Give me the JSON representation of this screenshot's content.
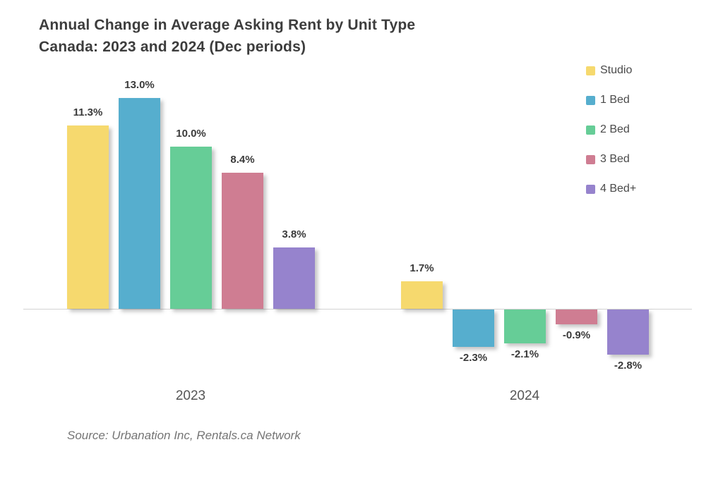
{
  "title": {
    "line1": "Annual Change in Average Asking Rent by Unit Type",
    "line2": "Canada: 2023 and 2024 (Dec periods)"
  },
  "source": "Source: Urbanation Inc, Rentals.ca Network",
  "chart_data": {
    "type": "bar",
    "title": "Annual Change in Average Asking Rent by Unit Type — Canada: 2023 and 2024 (Dec periods)",
    "categories": [
      "2023",
      "2024"
    ],
    "series": [
      {
        "name": "Studio",
        "color": "#F6D96E",
        "values": [
          11.3,
          1.7
        ]
      },
      {
        "name": "1 Bed",
        "color": "#56AECE",
        "values": [
          13.0,
          -2.3
        ]
      },
      {
        "name": "2 Bed",
        "color": "#66CD97",
        "values": [
          10.0,
          -2.1
        ]
      },
      {
        "name": "3 Bed",
        "color": "#CF7D92",
        "values": [
          8.4,
          -0.9
        ]
      },
      {
        "name": "4 Bed+",
        "color": "#9683CD",
        "values": [
          3.8,
          -2.8
        ]
      }
    ],
    "value_label_format": "one-decimal-percent",
    "value_labels": [
      [
        "11.3%",
        "13.0%",
        "10.0%",
        "8.4%",
        "3.8%"
      ],
      [
        "1.7%",
        "-2.3%",
        "-2.1%",
        "-0.9%",
        "-2.8%"
      ]
    ],
    "ylabel": "",
    "xlabel": "",
    "ylim": [
      -4,
      14
    ],
    "grid": false,
    "baseline": 0,
    "legend_position": "top-right"
  }
}
